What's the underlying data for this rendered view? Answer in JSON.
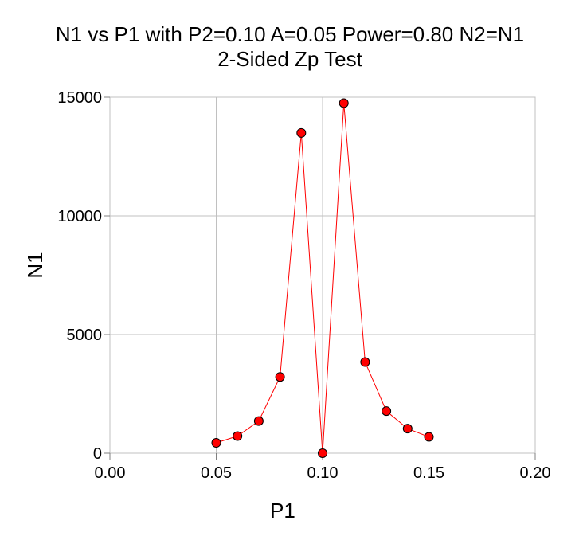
{
  "chart_data": {
    "type": "line",
    "title": "N1 vs P1 with P2=0.10 A=0.05 Power=0.80 N2=N1",
    "subtitle": "2-Sided Zp Test",
    "xlabel": "P1",
    "ylabel": "N1",
    "xlim": [
      0,
      0.2
    ],
    "ylim": [
      0,
      15000
    ],
    "xticks": [
      0,
      0.05,
      0.1,
      0.15,
      0.2
    ],
    "xtick_labels": [
      "0.00",
      "0.05",
      "0.10",
      "0.15",
      "0.20"
    ],
    "yticks": [
      0,
      5000,
      10000,
      15000
    ],
    "ytick_labels": [
      "0",
      "5000",
      "10000",
      "15000"
    ],
    "grid": true,
    "series": [
      {
        "name": "N1",
        "color": "#ff0000",
        "x": [
          0.05,
          0.06,
          0.07,
          0.08,
          0.09,
          0.1,
          0.11,
          0.12,
          0.13,
          0.14,
          0.15
        ],
        "y": [
          435,
          721,
          1355,
          3213,
          13495,
          0,
          14750,
          3841,
          1774,
          1035,
          686
        ]
      }
    ]
  }
}
